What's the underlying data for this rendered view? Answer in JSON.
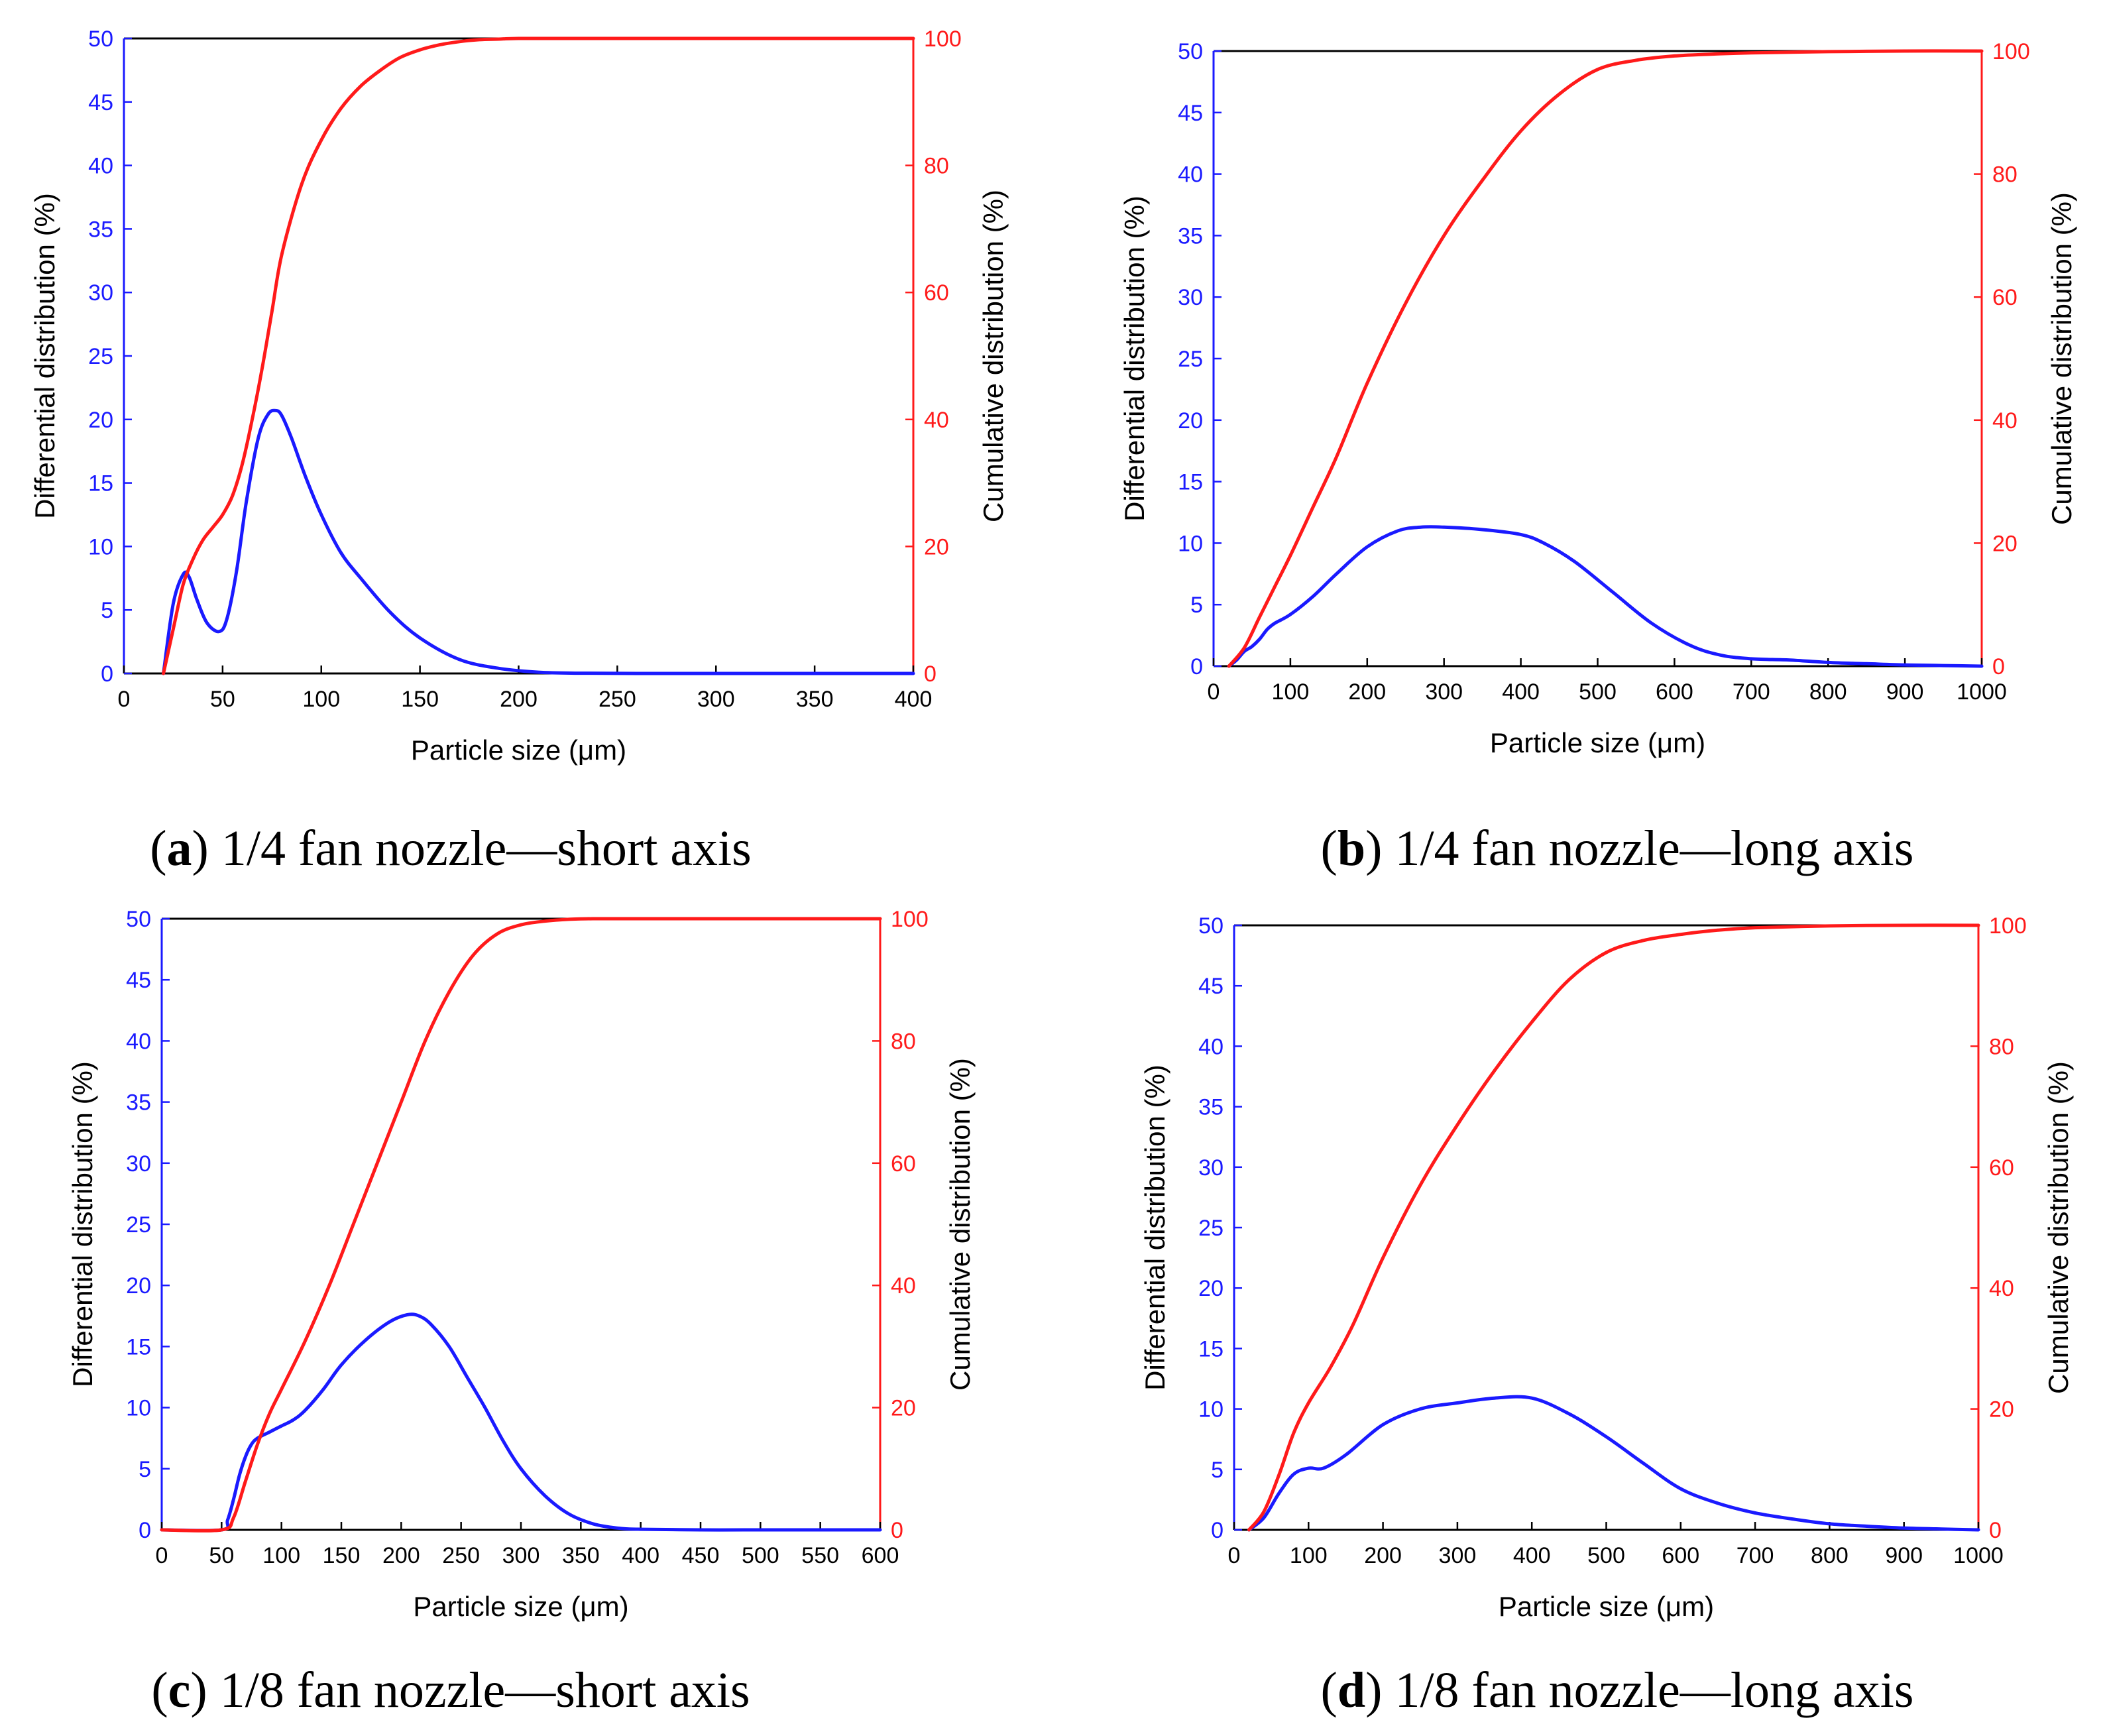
{
  "colors": {
    "differential": "#1a1aff",
    "cumulative": "#ff1a1a",
    "axis_left": "#1a1aff",
    "axis_right": "#ff1a1a",
    "frame": "#000000"
  },
  "chart_data": [
    {
      "type": "line",
      "panel": "a",
      "caption_letter": "a",
      "caption_text": "1/4 fan nozzle—short axis",
      "xlabel": "Particle size (μm)",
      "ylabel_left": "Differential distribution (%)",
      "ylabel_right": "Cumulative distribution (%)",
      "xlim": [
        0,
        400
      ],
      "xticks": [
        0,
        50,
        100,
        150,
        200,
        250,
        300,
        350,
        400
      ],
      "ylim_left": [
        0,
        50
      ],
      "yticks_left": [
        0,
        5,
        10,
        15,
        20,
        25,
        30,
        35,
        40,
        45,
        50
      ],
      "ylim_right": [
        0,
        100
      ],
      "yticks_right": [
        0,
        20,
        40,
        60,
        80,
        100
      ],
      "series": [
        {
          "name": "Differential distribution",
          "axis": "left",
          "x": [
            20,
            25,
            30,
            33,
            37,
            42,
            48,
            52,
            57,
            62,
            68,
            73,
            77,
            80,
            85,
            92,
            100,
            110,
            120,
            135,
            150,
            170,
            190,
            210,
            230,
            260,
            300,
            400
          ],
          "y": [
            0,
            5.5,
            7.8,
            7.6,
            5.8,
            4.0,
            3.3,
            4.2,
            8.0,
            13.5,
            18.5,
            20.4,
            20.7,
            20.3,
            18.5,
            15.5,
            12.5,
            9.5,
            7.5,
            4.8,
            2.8,
            1.1,
            0.4,
            0.1,
            0.02,
            0,
            0,
            0
          ]
        },
        {
          "name": "Cumulative distribution",
          "axis": "right",
          "x": [
            20,
            25,
            30,
            35,
            40,
            45,
            50,
            55,
            60,
            65,
            70,
            75,
            80,
            90,
            100,
            110,
            120,
            130,
            140,
            150,
            160,
            170,
            180,
            190,
            200,
            225,
            250,
            300,
            400
          ],
          "y": [
            0,
            7,
            14,
            18,
            21,
            23,
            25,
            28,
            33,
            40,
            48,
            57,
            66,
            77,
            84,
            89,
            92.5,
            95,
            97,
            98.2,
            99,
            99.5,
            99.8,
            99.9,
            100,
            100,
            100,
            100,
            100
          ]
        }
      ]
    },
    {
      "type": "line",
      "panel": "b",
      "caption_letter": "b",
      "caption_text": "1/4 fan nozzle—long axis",
      "xlabel": "Particle size (μm)",
      "ylabel_left": "Differential distribution (%)",
      "ylabel_right": "Cumulative distribution (%)",
      "xlim": [
        0,
        1000
      ],
      "xticks": [
        0,
        100,
        200,
        300,
        400,
        500,
        600,
        700,
        800,
        900,
        1000
      ],
      "ylim_left": [
        0,
        50
      ],
      "yticks_left": [
        0,
        5,
        10,
        15,
        20,
        25,
        30,
        35,
        40,
        45,
        50
      ],
      "ylim_right": [
        0,
        100
      ],
      "yticks_right": [
        0,
        20,
        40,
        60,
        80,
        100
      ],
      "series": [
        {
          "name": "Differential distribution",
          "axis": "left",
          "x": [
            20,
            30,
            40,
            50,
            60,
            70,
            80,
            100,
            130,
            160,
            200,
            240,
            270,
            300,
            350,
            400,
            430,
            470,
            520,
            570,
            620,
            660,
            700,
            750,
            800,
            850,
            900,
            950,
            1000
          ],
          "y": [
            0,
            0.5,
            1.2,
            1.6,
            2.2,
            3.0,
            3.5,
            4.2,
            5.7,
            7.5,
            9.7,
            11.0,
            11.3,
            11.3,
            11.1,
            10.7,
            10.0,
            8.5,
            6.0,
            3.5,
            1.7,
            0.9,
            0.6,
            0.5,
            0.3,
            0.2,
            0.1,
            0.05,
            0
          ]
        },
        {
          "name": "Cumulative distribution",
          "axis": "right",
          "x": [
            20,
            40,
            60,
            80,
            100,
            130,
            160,
            200,
            250,
            300,
            350,
            400,
            450,
            500,
            550,
            600,
            650,
            700,
            800,
            900,
            1000
          ],
          "y": [
            0,
            3,
            8,
            13,
            18,
            26,
            34,
            46,
            59,
            70,
            79,
            87,
            93,
            97,
            98.5,
            99.2,
            99.5,
            99.7,
            99.9,
            100,
            100
          ]
        }
      ]
    },
    {
      "type": "line",
      "panel": "c",
      "caption_letter": "c",
      "caption_text": "1/8 fan nozzle—short axis",
      "xlabel": "Particle size (μm)",
      "ylabel_left": "Differential distribution (%)",
      "ylabel_right": "Cumulative distribution (%)",
      "xlim": [
        0,
        600
      ],
      "xticks": [
        0,
        50,
        100,
        150,
        200,
        250,
        300,
        350,
        400,
        450,
        500,
        550,
        600
      ],
      "ylim_left": [
        0,
        50
      ],
      "yticks_left": [
        0,
        5,
        10,
        15,
        20,
        25,
        30,
        35,
        40,
        45,
        50
      ],
      "ylim_right": [
        0,
        100
      ],
      "yticks_right": [
        0,
        20,
        40,
        60,
        80,
        100
      ],
      "series": [
        {
          "name": "Differential distribution",
          "axis": "left",
          "x": [
            0,
            50,
            55,
            60,
            65,
            70,
            75,
            80,
            90,
            100,
            110,
            120,
            135,
            150,
            170,
            190,
            205,
            215,
            225,
            240,
            255,
            270,
            285,
            300,
            320,
            340,
            360,
            380,
            400,
            450,
            500,
            550,
            600
          ],
          "y": [
            0,
            0,
            0.8,
            2.5,
            4.5,
            6.0,
            7.0,
            7.5,
            8.0,
            8.5,
            9.0,
            9.8,
            11.5,
            13.5,
            15.5,
            17.0,
            17.6,
            17.5,
            16.8,
            15.0,
            12.5,
            10.0,
            7.3,
            5.0,
            2.8,
            1.3,
            0.5,
            0.15,
            0.05,
            0,
            0,
            0,
            0
          ]
        },
        {
          "name": "Cumulative distribution",
          "axis": "right",
          "x": [
            0,
            50,
            60,
            70,
            80,
            90,
            100,
            120,
            140,
            160,
            180,
            200,
            220,
            240,
            260,
            280,
            300,
            320,
            340,
            360,
            400,
            450,
            500,
            550,
            600
          ],
          "y": [
            0,
            0,
            2,
            8,
            14,
            19,
            23,
            31,
            40,
            50,
            60,
            70,
            80,
            88,
            94,
            97.5,
            99,
            99.6,
            99.9,
            100,
            100,
            100,
            100,
            100,
            100
          ]
        }
      ]
    },
    {
      "type": "line",
      "panel": "d",
      "caption_letter": "d",
      "caption_text": "1/8 fan nozzle—long axis",
      "xlabel": "Particle size (μm)",
      "ylabel_left": "Differential distribution (%)",
      "ylabel_right": "Cumulative distribution (%)",
      "xlim": [
        0,
        1000
      ],
      "xticks": [
        0,
        100,
        200,
        300,
        400,
        500,
        600,
        700,
        800,
        900,
        1000
      ],
      "ylim_left": [
        0,
        50
      ],
      "yticks_left": [
        0,
        5,
        10,
        15,
        20,
        25,
        30,
        35,
        40,
        45,
        50
      ],
      "ylim_right": [
        0,
        100
      ],
      "yticks_right": [
        0,
        20,
        40,
        60,
        80,
        100
      ],
      "series": [
        {
          "name": "Differential distribution",
          "axis": "left",
          "x": [
            20,
            40,
            60,
            80,
            100,
            120,
            150,
            200,
            250,
            300,
            350,
            400,
            450,
            500,
            550,
            600,
            650,
            700,
            750,
            800,
            850,
            900,
            950,
            1000
          ],
          "y": [
            0,
            1.0,
            3.0,
            4.6,
            5.1,
            5.1,
            6.2,
            8.7,
            10.0,
            10.5,
            10.9,
            10.9,
            9.6,
            7.7,
            5.5,
            3.4,
            2.2,
            1.4,
            0.9,
            0.5,
            0.3,
            0.15,
            0.07,
            0
          ]
        },
        {
          "name": "Cumulative distribution",
          "axis": "right",
          "x": [
            20,
            40,
            60,
            80,
            100,
            130,
            160,
            200,
            250,
            300,
            350,
            400,
            450,
            500,
            550,
            600,
            650,
            700,
            800,
            900,
            1000
          ],
          "y": [
            0,
            3,
            9,
            16,
            21,
            27,
            34,
            45,
            57,
            67,
            76,
            84,
            91,
            95.5,
            97.5,
            98.5,
            99.2,
            99.6,
            99.9,
            100,
            100
          ]
        }
      ]
    }
  ]
}
